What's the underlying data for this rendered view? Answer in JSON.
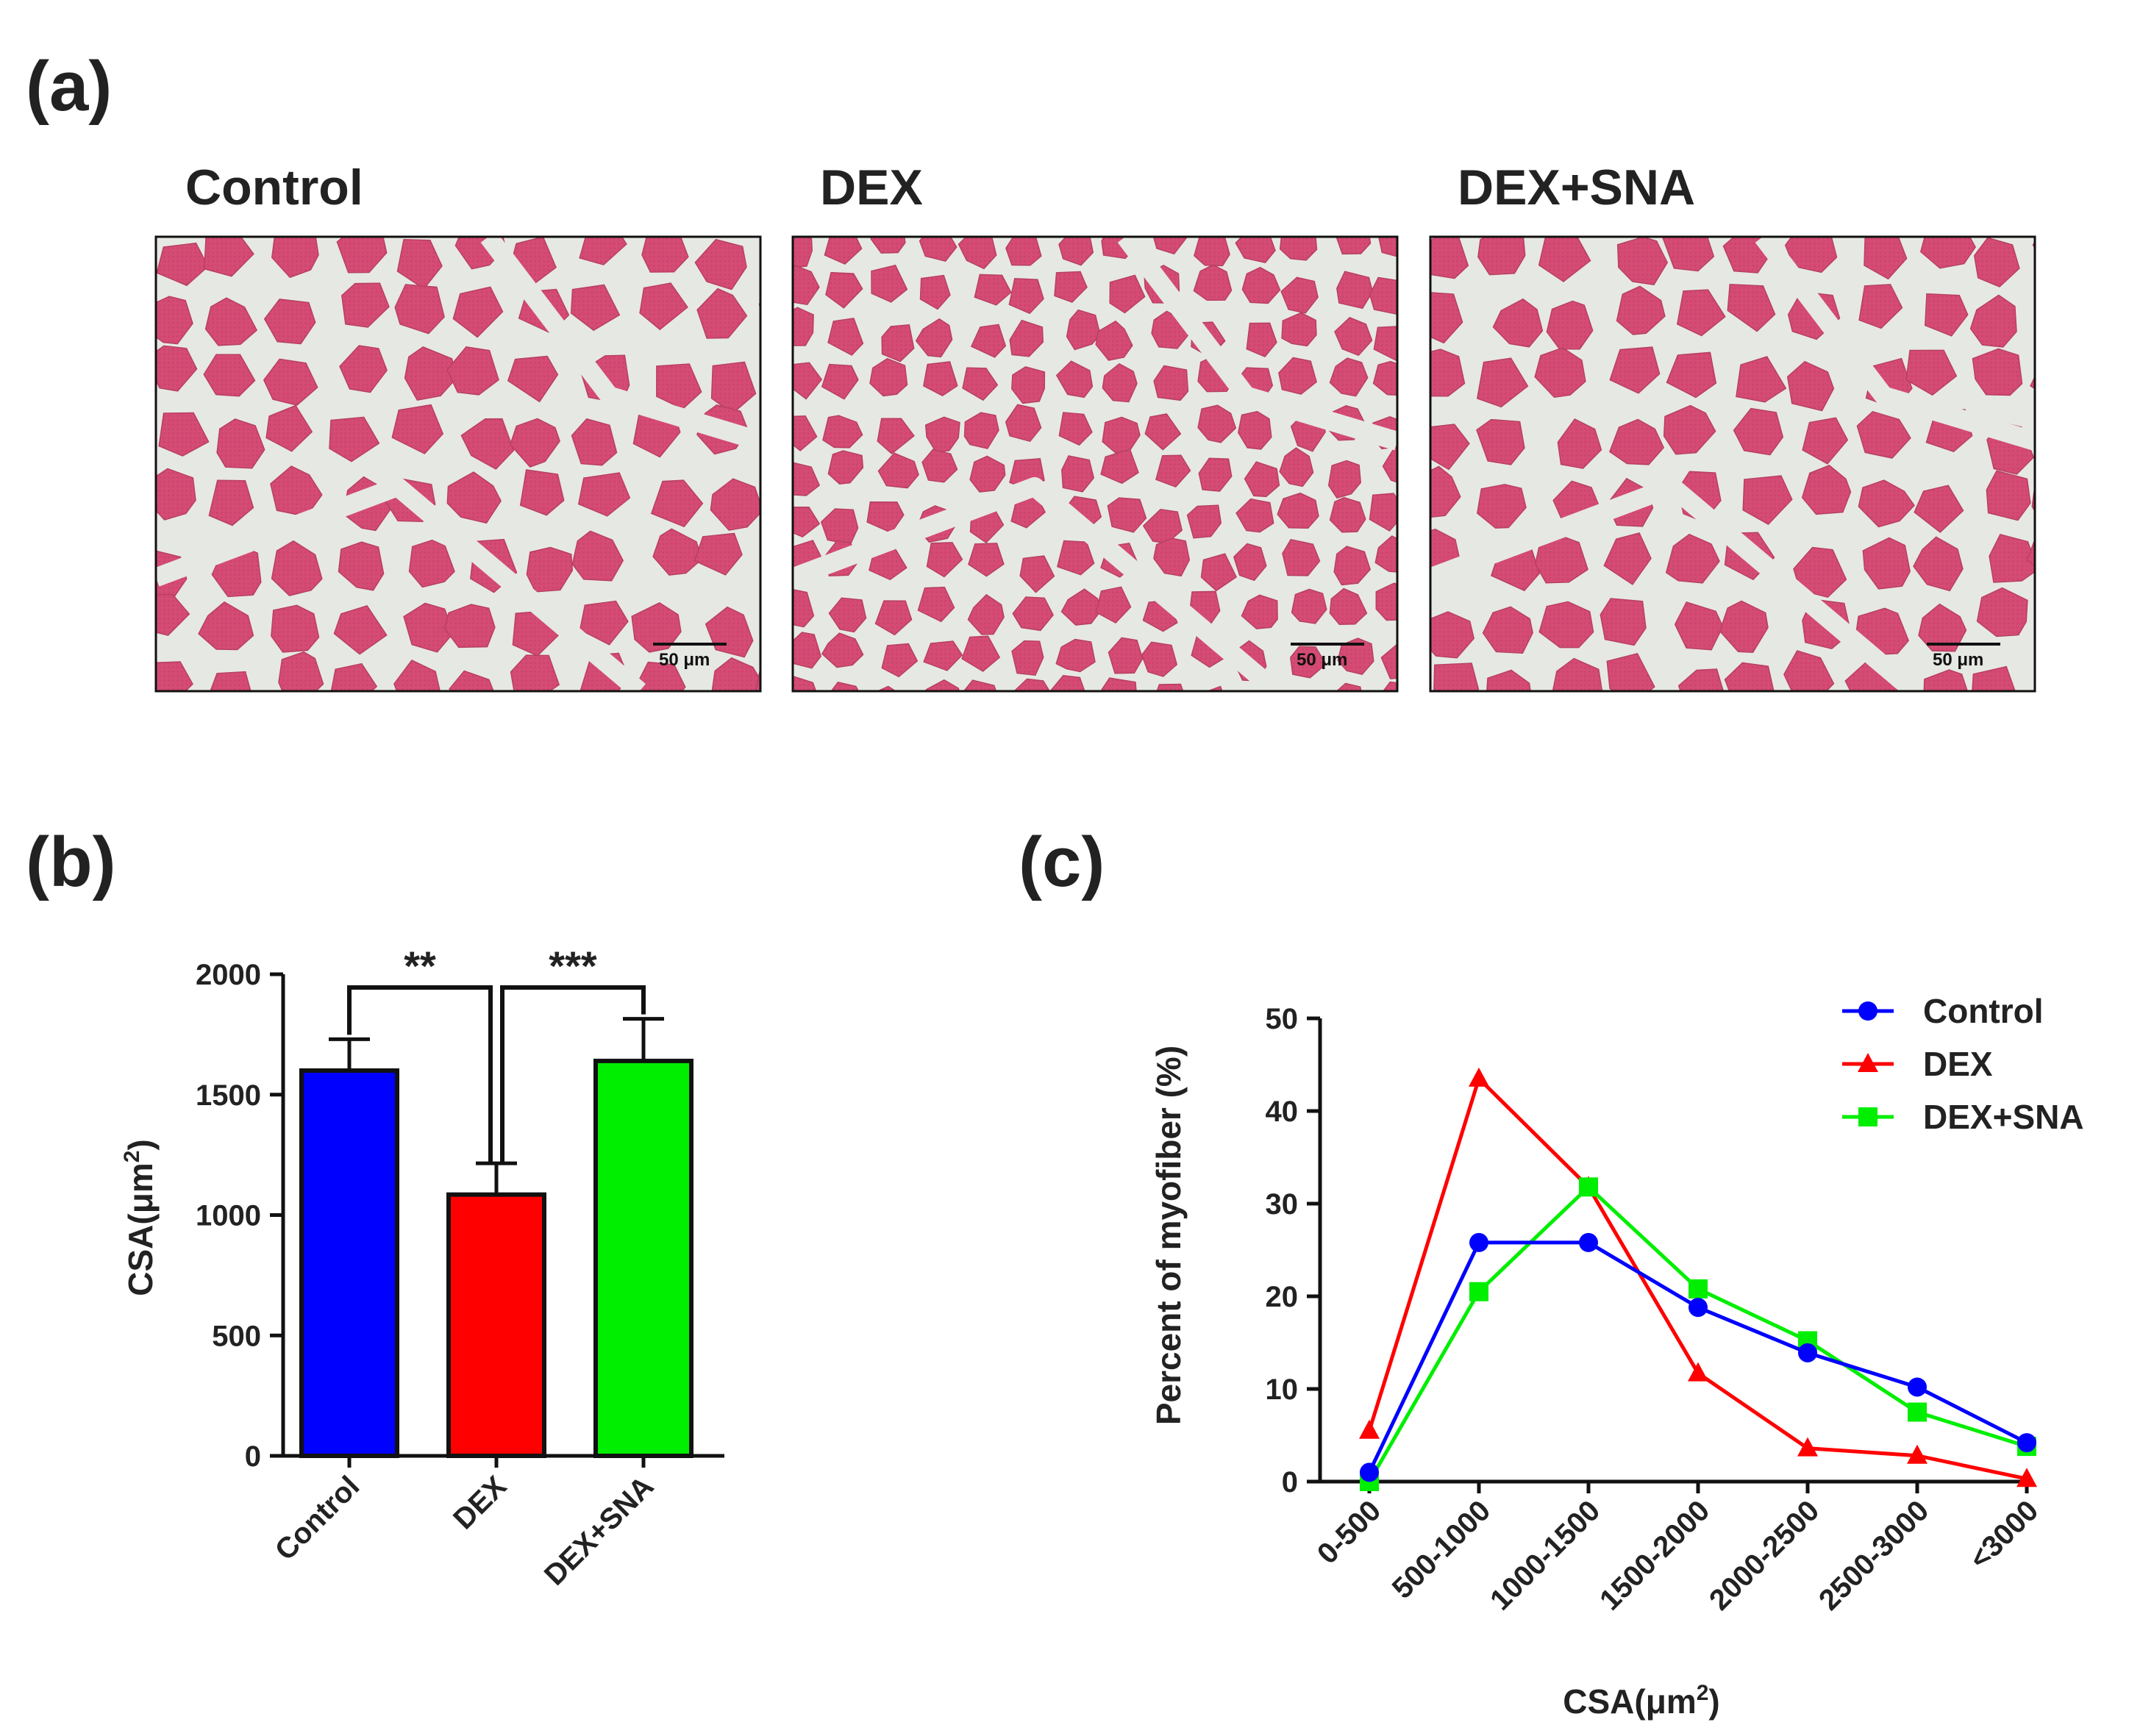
{
  "panel_a": {
    "label": "(a)",
    "images": [
      {
        "title": "Control",
        "scale_bar": "50 μm"
      },
      {
        "title": "DEX",
        "scale_bar": "50 μm"
      },
      {
        "title": "DEX+SNA",
        "scale_bar": "50 μm"
      }
    ]
  },
  "panel_b": {
    "label": "(b)"
  },
  "panel_c": {
    "label": "(c)"
  },
  "colors": {
    "control": "#0000ff",
    "dex": "#ff0000",
    "dex_sna": "#00ee00",
    "tissue": "#d24a73",
    "background_gap": "#e6e8e4"
  },
  "chart_data": [
    {
      "id": "b",
      "type": "bar",
      "categories": [
        "Control",
        "DEX",
        "DEX+SNA"
      ],
      "values": [
        1600,
        1085,
        1640
      ],
      "errors": [
        130,
        130,
        175
      ],
      "colors": [
        "#0000ff",
        "#ff0000",
        "#00ee00"
      ],
      "ylabel": "CSA(μm²)",
      "ylabel_base": "CSA(μm",
      "ylabel_sup": "2",
      "ylabel_end": ")",
      "ylim": [
        0,
        2000
      ],
      "yticks": [
        0,
        500,
        1000,
        1500,
        2000
      ],
      "significance": [
        {
          "from": 0,
          "to": 1,
          "label": "**"
        },
        {
          "from": 1,
          "to": 2,
          "label": "***"
        }
      ]
    },
    {
      "id": "c",
      "type": "line",
      "categories": [
        "0-500",
        "500-1000",
        "1000-1500",
        "1500-2000",
        "2000-2500",
        "2500-3000",
        "<3000"
      ],
      "ylabel": "Percent of myofiber (%)",
      "xlabel": "CSA(μm²)",
      "xlabel_base": "CSA(μm",
      "xlabel_sup": "2",
      "xlabel_end": ")",
      "ylim": [
        0,
        50
      ],
      "yticks": [
        0,
        10,
        20,
        30,
        40,
        50
      ],
      "legend_position": "top-right",
      "series": [
        {
          "name": "Control",
          "color": "#0000ff",
          "marker": "circle",
          "values": [
            1.0,
            25.8,
            25.8,
            18.8,
            13.9,
            10.2,
            4.2
          ]
        },
        {
          "name": "DEX",
          "color": "#ff0000",
          "marker": "triangle",
          "values": [
            5.5,
            43.5,
            31.8,
            11.7,
            3.6,
            2.8,
            0.3
          ]
        },
        {
          "name": "DEX+SNA",
          "color": "#00ee00",
          "marker": "square",
          "values": [
            0.0,
            20.5,
            31.8,
            20.8,
            15.2,
            7.5,
            3.8
          ]
        }
      ]
    }
  ]
}
